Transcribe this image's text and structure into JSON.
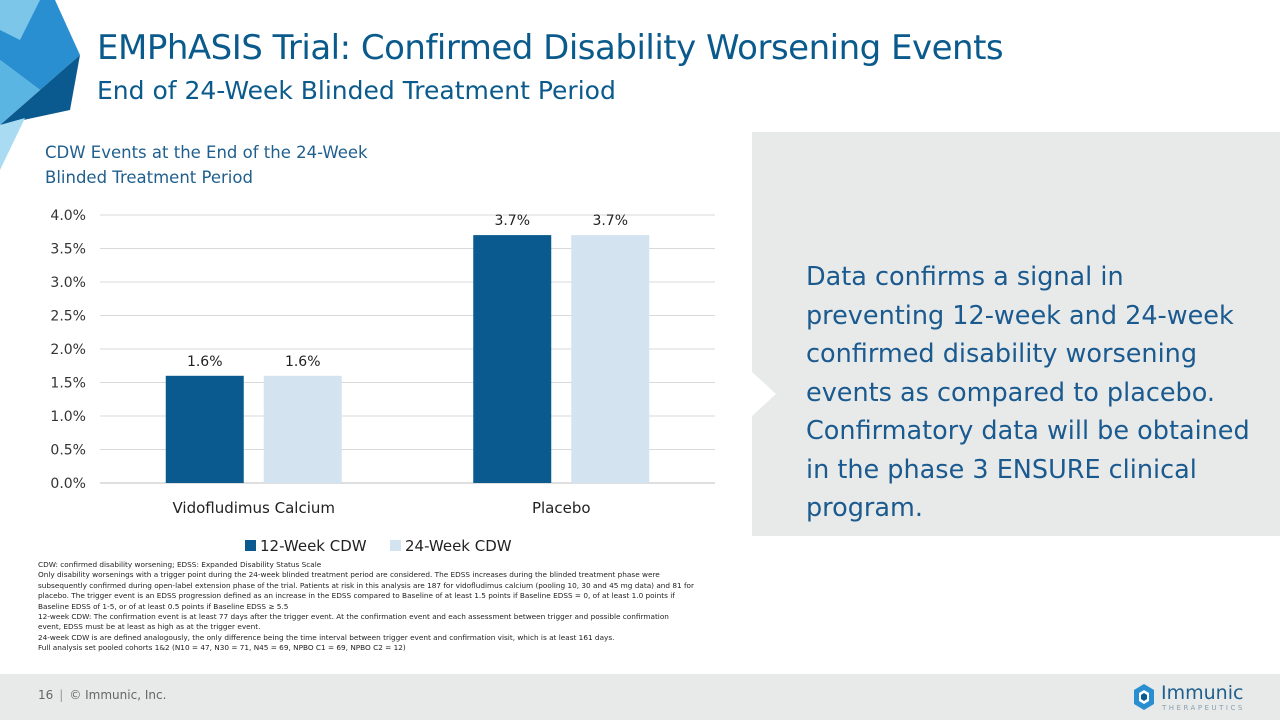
{
  "slide": {
    "title": "EMPhASIS Trial: Confirmed Disability Worsening Events",
    "subtitle": "End of 24-Week Blinded Treatment Period",
    "chart_heading": "CDW Events at the End of the 24-Week Blinded Treatment Period",
    "callout": "Data confirms a signal in preventing 12-week and 24-week confirmed disability worsening events as compared to placebo. Confirmatory data will be obtained in the phase 3 ENSURE clinical program.",
    "footnotes": [
      "CDW: confirmed disability worsening; EDSS: Expanded Disability Status Scale",
      "Only disability worsenings with a trigger point during the 24-week blinded treatment period are considered. The EDSS increases during the blinded treatment phase were",
      "subsequently confirmed during open-label extension phase of the trial. Patients at risk in this analysis are 187 for vidofludimus calcium (pooling 10, 30 and 45 mg data) and 81 for",
      "placebo. The trigger event is an EDSS progression defined as an increase in the EDSS compared to Baseline of at least 1.5 points if Baseline EDSS = 0, of at least 1.0 points if",
      "Baseline EDSS of 1-5, or of at least 0.5 points if Baseline EDSS ≥ 5.5",
      "12-week CDW: The confirmation event is at least 77 days after the trigger event. At the confirmation event and each assessment between trigger and possible confirmation",
      "event, EDSS must be at least as high as at the trigger event.",
      "24-week CDW is are defined analogously, the only difference being the time interval between trigger event and confirmation visit, which is at least 161 days.",
      "Full analysis set pooled cohorts 1&2 (N10 = 47, N30 = 71, N45 = 69, NPBO C1 = 69, NPBO C2 = 12)"
    ],
    "page_number": "16",
    "copyright": "© Immunic, Inc.",
    "logo_name": "Immunic",
    "logo_tagline": "THERAPEUTICS"
  },
  "colors": {
    "primary": "#0a5a8c",
    "series_12": "#0b5a8f",
    "series_24": "#d3e3f0",
    "callout_bg": "#e8e9e9"
  },
  "chart_data": {
    "type": "bar",
    "title": "CDW Events at the End of the 24-Week Blinded Treatment Period",
    "categories": [
      "Vidofludimus Calcium",
      "Placebo"
    ],
    "series": [
      {
        "name": "12-Week CDW",
        "values": [
          1.6,
          3.7
        ],
        "labels": [
          "1.6%",
          "3.7%"
        ]
      },
      {
        "name": "24-Week CDW",
        "values": [
          1.6,
          3.7
        ],
        "labels": [
          "1.6%",
          "3.7%"
        ]
      }
    ],
    "yticks": [
      "0.0%",
      "0.5%",
      "1.0%",
      "1.5%",
      "2.0%",
      "2.5%",
      "3.0%",
      "3.5%",
      "4.0%"
    ],
    "ylim": [
      0,
      4.0
    ],
    "ystep": 0.5,
    "ylabel": "",
    "xlabel": "",
    "grid": true,
    "legend_position": "bottom"
  }
}
